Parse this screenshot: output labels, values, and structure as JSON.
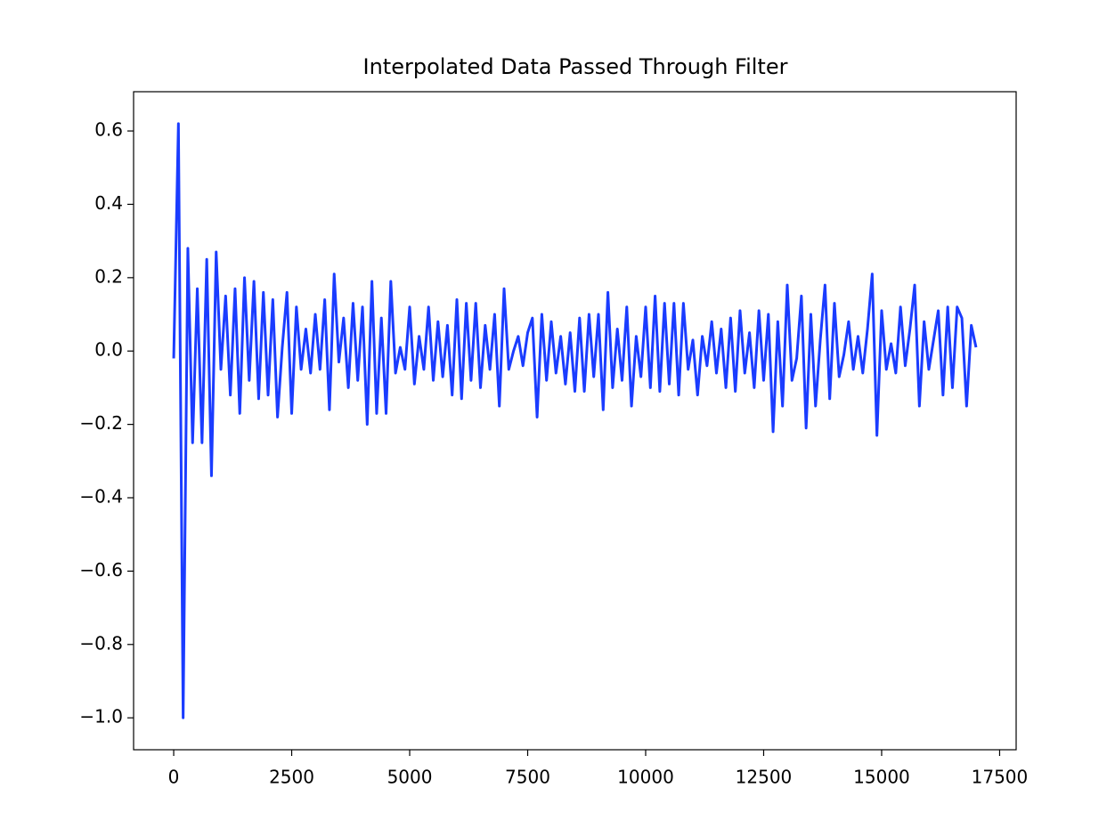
{
  "chart_data": {
    "type": "line",
    "title": "Interpolated Data Passed Through Filter",
    "color": "#1a3cff",
    "x": [
      0,
      100,
      200,
      300,
      400,
      500,
      600,
      700,
      800,
      900,
      1000,
      1100,
      1200,
      1300,
      1400,
      1500,
      1600,
      1700,
      1800,
      1900,
      2000,
      2100,
      2200,
      2300,
      2400,
      2500,
      2600,
      2700,
      2800,
      2900,
      3000,
      3100,
      3200,
      3300,
      3400,
      3500,
      3600,
      3700,
      3800,
      3900,
      4000,
      4100,
      4200,
      4300,
      4400,
      4500,
      4600,
      4700,
      4800,
      4900,
      5000,
      5100,
      5200,
      5300,
      5400,
      5500,
      5600,
      5700,
      5800,
      5900,
      6000,
      6100,
      6200,
      6300,
      6400,
      6500,
      6600,
      6700,
      6800,
      6900,
      7000,
      7100,
      7200,
      7300,
      7400,
      7500,
      7600,
      7700,
      7800,
      7900,
      8000,
      8100,
      8200,
      8300,
      8400,
      8500,
      8600,
      8700,
      8800,
      8900,
      9000,
      9100,
      9200,
      9300,
      9400,
      9500,
      9600,
      9700,
      9800,
      9900,
      10000,
      10100,
      10200,
      10300,
      10400,
      10500,
      10600,
      10700,
      10800,
      10900,
      11000,
      11100,
      11200,
      11300,
      11400,
      11500,
      11600,
      11700,
      11800,
      11900,
      12000,
      12100,
      12200,
      12300,
      12400,
      12500,
      12600,
      12700,
      12800,
      12900,
      13000,
      13100,
      13200,
      13300,
      13400,
      13500,
      13600,
      13700,
      13800,
      13900,
      14000,
      14100,
      14200,
      14300,
      14400,
      14500,
      14600,
      14700,
      14800,
      14900,
      15000,
      15100,
      15200,
      15300,
      15400,
      15500,
      15600,
      15700,
      15800,
      15900,
      16000,
      16100,
      16200,
      16300,
      16400,
      16500,
      16600,
      16700,
      16800,
      16900,
      17000
    ],
    "values": [
      -0.02,
      0.62,
      -1.0,
      0.28,
      -0.25,
      0.17,
      -0.25,
      0.25,
      -0.34,
      0.27,
      -0.05,
      0.15,
      -0.12,
      0.17,
      -0.17,
      0.2,
      -0.08,
      0.19,
      -0.13,
      0.16,
      -0.12,
      0.14,
      -0.18,
      0.01,
      0.16,
      -0.17,
      0.12,
      -0.05,
      0.06,
      -0.06,
      0.1,
      -0.05,
      0.14,
      -0.16,
      0.21,
      -0.03,
      0.09,
      -0.1,
      0.13,
      -0.08,
      0.12,
      -0.2,
      0.19,
      -0.17,
      0.09,
      -0.17,
      0.19,
      -0.06,
      0.01,
      -0.05,
      0.12,
      -0.09,
      0.04,
      -0.05,
      0.12,
      -0.08,
      0.08,
      -0.07,
      0.07,
      -0.12,
      0.14,
      -0.13,
      0.13,
      -0.08,
      0.13,
      -0.1,
      0.07,
      -0.05,
      0.1,
      -0.15,
      0.17,
      -0.05,
      0.0,
      0.04,
      -0.04,
      0.05,
      0.09,
      -0.18,
      0.1,
      -0.08,
      0.08,
      -0.06,
      0.04,
      -0.09,
      0.05,
      -0.11,
      0.09,
      -0.11,
      0.1,
      -0.07,
      0.1,
      -0.16,
      0.16,
      -0.1,
      0.06,
      -0.08,
      0.12,
      -0.15,
      0.04,
      -0.07,
      0.12,
      -0.1,
      0.15,
      -0.11,
      0.13,
      -0.09,
      0.13,
      -0.12,
      0.13,
      -0.05,
      0.03,
      -0.12,
      0.04,
      -0.04,
      0.08,
      -0.06,
      0.06,
      -0.1,
      0.09,
      -0.11,
      0.11,
      -0.06,
      0.05,
      -0.1,
      0.11,
      -0.08,
      0.1,
      -0.22,
      0.08,
      -0.15,
      0.18,
      -0.08,
      -0.02,
      0.15,
      -0.21,
      0.1,
      -0.15,
      0.03,
      0.18,
      -0.13,
      0.13,
      -0.07,
      -0.01,
      0.08,
      -0.05,
      0.04,
      -0.06,
      0.06,
      0.21,
      -0.23,
      0.11,
      -0.05,
      0.02,
      -0.06,
      0.12,
      -0.04,
      0.06,
      0.18,
      -0.15,
      0.08,
      -0.05,
      0.03,
      0.11,
      -0.12,
      0.12,
      -0.1,
      0.12,
      0.09,
      -0.15,
      0.07,
      0.01
    ],
    "xlim": [
      -850,
      17850
    ],
    "ylim": [
      -1.087,
      0.707
    ],
    "xticks": [
      0,
      2500,
      5000,
      7500,
      10000,
      12500,
      15000,
      17500
    ],
    "yticks": [
      {
        "value": -1.0,
        "label": "−1.0"
      },
      {
        "value": -0.8,
        "label": "−0.8"
      },
      {
        "value": -0.6,
        "label": "−0.6"
      },
      {
        "value": -0.4,
        "label": "−0.4"
      },
      {
        "value": -0.2,
        "label": "−0.2"
      },
      {
        "value": 0.0,
        "label": "0.0"
      },
      0.2,
      0.4,
      0.6
    ],
    "grid": false
  }
}
